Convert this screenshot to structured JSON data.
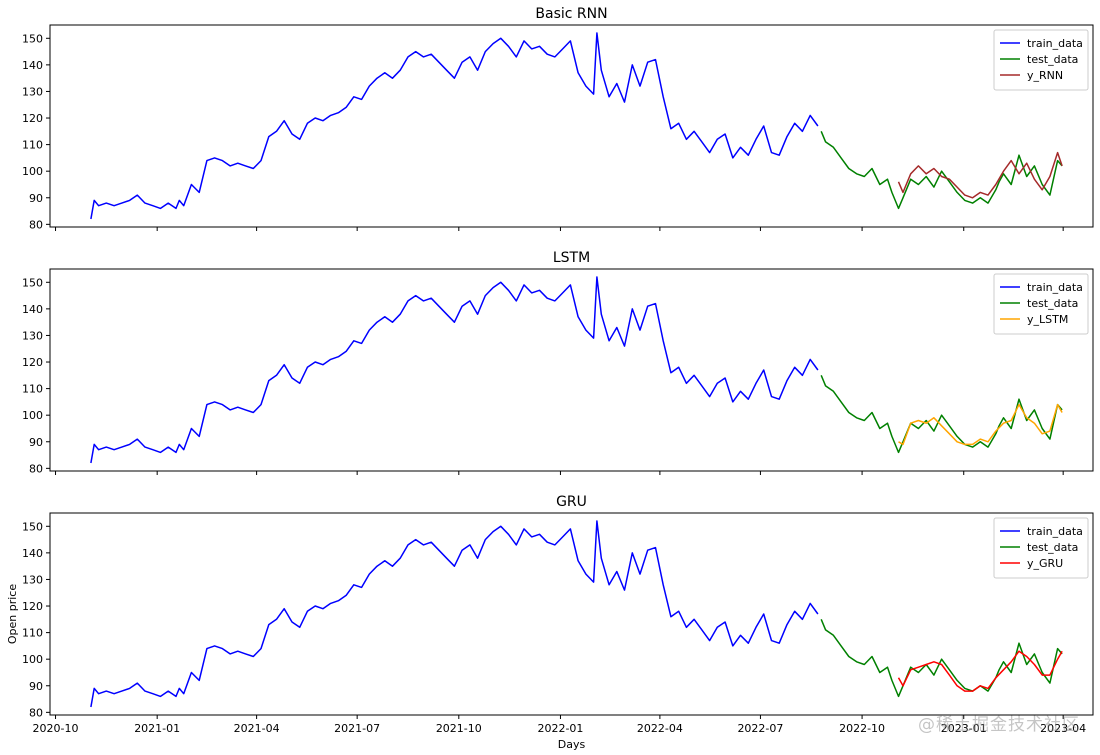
{
  "figure": {
    "watermark": "@稀土掘金技术社区"
  },
  "chart_data": [
    {
      "type": "line",
      "title": "Basic RNN",
      "xlabel": "",
      "ylabel": "",
      "ylim": [
        79,
        155
      ],
      "yticks": [
        80,
        90,
        100,
        110,
        120,
        130,
        140,
        150
      ],
      "xticks": [],
      "legend": "top-right",
      "series": [
        {
          "name": "train_data",
          "color": "#0000ff"
        },
        {
          "name": "test_data",
          "color": "#008000"
        },
        {
          "name": "y_RNN",
          "color": "#a52a2a"
        }
      ]
    },
    {
      "type": "line",
      "title": "LSTM",
      "xlabel": "",
      "ylabel": "",
      "ylim": [
        79,
        155
      ],
      "yticks": [
        80,
        90,
        100,
        110,
        120,
        130,
        140,
        150
      ],
      "xticks": [],
      "legend": "top-right",
      "series": [
        {
          "name": "train_data",
          "color": "#0000ff"
        },
        {
          "name": "test_data",
          "color": "#008000"
        },
        {
          "name": "y_LSTM",
          "color": "#ffa500"
        }
      ]
    },
    {
      "type": "line",
      "title": "GRU",
      "xlabel": "Days",
      "ylabel": "Open price",
      "ylim": [
        79,
        155
      ],
      "yticks": [
        80,
        90,
        100,
        110,
        120,
        130,
        140,
        150
      ],
      "xticks": [
        "2020-10",
        "2021-01",
        "2021-04",
        "2021-07",
        "2021-10",
        "2022-01",
        "2022-04",
        "2022-07",
        "2022-10",
        "2023-01",
        "2023-04"
      ],
      "legend": "top-right",
      "series": [
        {
          "name": "train_data",
          "color": "#0000ff"
        },
        {
          "name": "test_data",
          "color": "#008000"
        },
        {
          "name": "y_GRU",
          "color": "#ff0000"
        }
      ]
    }
  ],
  "series_values": {
    "train_data": {
      "x": [
        "2020-11-02",
        "2020-11-05",
        "2020-11-09",
        "2020-11-16",
        "2020-11-23",
        "2020-11-30",
        "2020-12-07",
        "2020-12-14",
        "2020-12-21",
        "2020-12-28",
        "2021-01-04",
        "2021-01-11",
        "2021-01-18",
        "2021-01-21",
        "2021-01-25",
        "2021-02-01",
        "2021-02-08",
        "2021-02-15",
        "2021-02-22",
        "2021-03-01",
        "2021-03-08",
        "2021-03-15",
        "2021-03-22",
        "2021-03-29",
        "2021-04-05",
        "2021-04-12",
        "2021-04-19",
        "2021-04-26",
        "2021-05-03",
        "2021-05-10",
        "2021-05-17",
        "2021-05-24",
        "2021-05-31",
        "2021-06-07",
        "2021-06-14",
        "2021-06-21",
        "2021-06-28",
        "2021-07-05",
        "2021-07-12",
        "2021-07-19",
        "2021-07-26",
        "2021-08-02",
        "2021-08-09",
        "2021-08-16",
        "2021-08-23",
        "2021-08-30",
        "2021-09-06",
        "2021-09-13",
        "2021-09-20",
        "2021-09-27",
        "2021-10-04",
        "2021-10-11",
        "2021-10-18",
        "2021-10-25",
        "2021-11-01",
        "2021-11-08",
        "2021-11-15",
        "2021-11-22",
        "2021-11-29",
        "2021-12-06",
        "2021-12-13",
        "2021-12-20",
        "2021-12-27",
        "2022-01-03",
        "2022-01-10",
        "2022-01-17",
        "2022-01-24",
        "2022-01-31",
        "2022-02-03",
        "2022-02-07",
        "2022-02-14",
        "2022-02-21",
        "2022-02-28",
        "2022-03-07",
        "2022-03-14",
        "2022-03-21",
        "2022-03-28",
        "2022-04-04",
        "2022-04-11",
        "2022-04-18",
        "2022-04-25",
        "2022-05-02",
        "2022-05-09",
        "2022-05-16",
        "2022-05-23",
        "2022-05-30",
        "2022-06-06",
        "2022-06-13",
        "2022-06-20",
        "2022-06-27",
        "2022-07-04",
        "2022-07-11",
        "2022-07-18",
        "2022-07-25",
        "2022-08-01",
        "2022-08-08",
        "2022-08-15",
        "2022-08-22"
      ],
      "y": [
        82,
        89,
        87,
        88,
        87,
        88,
        89,
        91,
        88,
        87,
        86,
        88,
        86,
        89,
        87,
        95,
        92,
        104,
        105,
        104,
        102,
        103,
        102,
        101,
        104,
        113,
        115,
        119,
        114,
        112,
        118,
        120,
        119,
        121,
        122,
        124,
        128,
        127,
        132,
        135,
        137,
        135,
        138,
        143,
        145,
        143,
        144,
        141,
        138,
        135,
        141,
        143,
        138,
        145,
        148,
        150,
        147,
        143,
        149,
        146,
        147,
        144,
        143,
        146,
        149,
        137,
        132,
        129,
        152,
        138,
        128,
        133,
        126,
        140,
        132,
        141,
        142,
        128,
        116,
        118,
        112,
        115,
        111,
        107,
        112,
        114,
        105,
        109,
        106,
        112,
        117,
        107,
        106,
        113,
        118,
        115,
        121,
        117
      ]
    },
    "test_data": {
      "x": [
        "2022-08-25",
        "2022-08-29",
        "2022-09-05",
        "2022-09-12",
        "2022-09-19",
        "2022-09-26",
        "2022-10-03",
        "2022-10-10",
        "2022-10-17",
        "2022-10-24",
        "2022-10-28",
        "2022-11-03",
        "2022-11-07",
        "2022-11-14",
        "2022-11-21",
        "2022-11-28",
        "2022-12-05",
        "2022-12-12",
        "2022-12-19",
        "2022-12-26",
        "2023-01-02",
        "2023-01-09",
        "2023-01-16",
        "2023-01-23",
        "2023-01-30",
        "2023-02-02",
        "2023-02-06",
        "2023-02-13",
        "2023-02-20",
        "2023-02-27",
        "2023-03-06",
        "2023-03-13",
        "2023-03-20",
        "2023-03-27",
        "2023-03-31"
      ],
      "y": [
        115,
        111,
        109,
        105,
        101,
        99,
        98,
        101,
        95,
        97,
        92,
        86,
        90,
        97,
        95,
        98,
        94,
        100,
        96,
        92,
        89,
        88,
        90,
        88,
        93,
        96,
        99,
        95,
        106,
        98,
        102,
        95,
        91,
        104,
        102
      ]
    },
    "y_RNN": {
      "x": [
        "2022-11-03",
        "2022-11-07",
        "2022-11-14",
        "2022-11-21",
        "2022-11-28",
        "2022-12-05",
        "2022-12-12",
        "2022-12-19",
        "2022-12-26",
        "2023-01-02",
        "2023-01-09",
        "2023-01-16",
        "2023-01-23",
        "2023-01-30",
        "2023-02-06",
        "2023-02-13",
        "2023-02-20",
        "2023-02-27",
        "2023-03-06",
        "2023-03-13",
        "2023-03-20",
        "2023-03-27",
        "2023-03-31"
      ],
      "y": [
        96,
        92,
        99,
        102,
        99,
        101,
        98,
        97,
        94,
        91,
        90,
        92,
        91,
        95,
        100,
        104,
        99,
        103,
        97,
        93,
        98,
        107,
        102
      ]
    },
    "y_LSTM": {
      "x": [
        "2022-11-03",
        "2022-11-07",
        "2022-11-14",
        "2022-11-21",
        "2022-11-28",
        "2022-12-05",
        "2022-12-12",
        "2022-12-19",
        "2022-12-26",
        "2023-01-02",
        "2023-01-09",
        "2023-01-16",
        "2023-01-23",
        "2023-01-30",
        "2023-02-06",
        "2023-02-13",
        "2023-02-20",
        "2023-02-27",
        "2023-03-06",
        "2023-03-13",
        "2023-03-20",
        "2023-03-27",
        "2023-03-31"
      ],
      "y": [
        90,
        89,
        97,
        98,
        97,
        99,
        96,
        93,
        90,
        89,
        89,
        91,
        90,
        94,
        97,
        98,
        104,
        99,
        97,
        93,
        94,
        104,
        101
      ]
    },
    "y_GRU": {
      "x": [
        "2022-11-03",
        "2022-11-07",
        "2022-11-14",
        "2022-11-21",
        "2022-11-28",
        "2022-12-05",
        "2022-12-12",
        "2022-12-19",
        "2022-12-26",
        "2023-01-02",
        "2023-01-09",
        "2023-01-16",
        "2023-01-23",
        "2023-01-30",
        "2023-02-06",
        "2023-02-13",
        "2023-02-20",
        "2023-02-27",
        "2023-03-06",
        "2023-03-13",
        "2023-03-20",
        "2023-03-27",
        "2023-03-31"
      ],
      "y": [
        93,
        90,
        96,
        97,
        98,
        99,
        98,
        94,
        90,
        88,
        88,
        90,
        89,
        93,
        96,
        99,
        103,
        101,
        98,
        94,
        94,
        100,
        103
      ]
    }
  }
}
